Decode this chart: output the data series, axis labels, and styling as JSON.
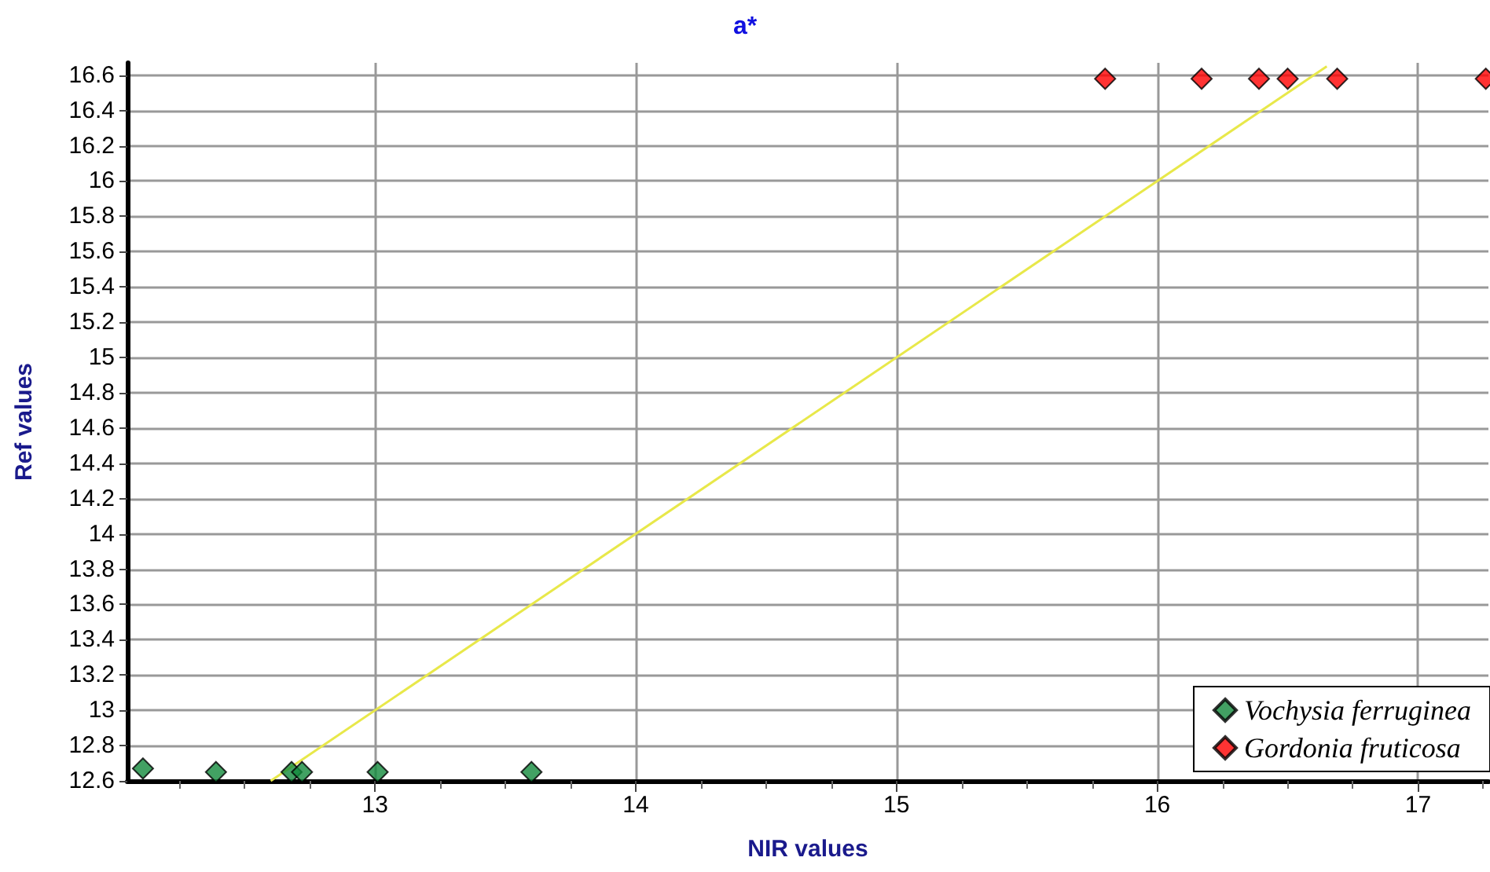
{
  "chart_data": {
    "type": "scatter",
    "title": "a*",
    "xlabel": "NIR values",
    "ylabel": "Ref values",
    "xlim": [
      12.05,
      17.27
    ],
    "xticks": [
      13,
      14,
      15,
      16,
      17
    ],
    "ylim": [
      12.6,
      16.67
    ],
    "yticks": [
      12.6,
      12.8,
      13,
      13.2,
      13.4,
      13.6,
      13.8,
      14,
      14.2,
      14.4,
      14.6,
      14.8,
      15,
      15.2,
      15.4,
      15.6,
      15.8,
      16,
      16.2,
      16.4,
      16.6
    ],
    "grid": true,
    "legend": "bottom right",
    "series": [
      {
        "name": "Vochysia ferruginea",
        "color": "#138a3c",
        "marker": "diamond",
        "x": [
          12.11,
          12.39,
          12.68,
          12.72,
          13.01,
          13.6
        ],
        "values": [
          12.67,
          12.65,
          12.65,
          12.65,
          12.65,
          12.65
        ]
      },
      {
        "name": "Gordonia fruticosa",
        "color": "#ff0000",
        "marker": "diamond",
        "x": [
          15.8,
          16.17,
          16.39,
          16.5,
          16.69,
          17.26
        ],
        "values": [
          16.58,
          16.58,
          16.58,
          16.58,
          16.58,
          16.58
        ]
      },
      {
        "type": "line",
        "color": "#e8e84a",
        "marker": "none",
        "x": [
          12.6,
          16.65
        ],
        "values": [
          12.6,
          16.65
        ]
      }
    ]
  }
}
